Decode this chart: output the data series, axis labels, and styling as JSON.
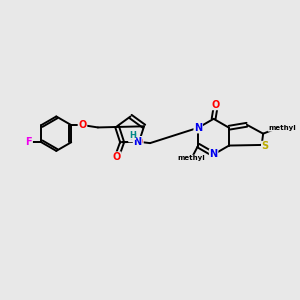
{
  "bg_color": "#e8e8e8",
  "bond_color": "#000000",
  "bond_width": 1.4,
  "atom_colors": {
    "F": "#ee00ee",
    "O": "#ff0000",
    "N": "#0000ee",
    "S": "#bbaa00",
    "H": "#008888",
    "C": "#000000"
  },
  "font_size": 7.0
}
